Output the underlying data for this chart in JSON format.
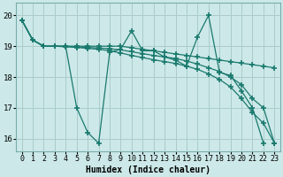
{
  "xlabel": "Humidex (Indice chaleur)",
  "bg_color": "#cce8e8",
  "grid_color": "#aacccc",
  "line_color": "#1a7a6e",
  "xlim": [
    -0.5,
    23.5
  ],
  "ylim": [
    15.6,
    20.4
  ],
  "xticks": [
    0,
    1,
    2,
    3,
    4,
    5,
    6,
    7,
    8,
    9,
    10,
    11,
    12,
    13,
    14,
    15,
    16,
    17,
    18,
    19,
    20,
    21,
    22,
    23
  ],
  "yticks": [
    16,
    17,
    18,
    19,
    20
  ],
  "s1_x": [
    0,
    1,
    2,
    3,
    4,
    5,
    6,
    7,
    8,
    9,
    10,
    11,
    12,
    13,
    14,
    15,
    16,
    17,
    18,
    19,
    20,
    21,
    22
  ],
  "s1_y": [
    19.85,
    19.2,
    19.0,
    19.0,
    19.0,
    17.0,
    16.2,
    15.85,
    18.8,
    18.9,
    19.5,
    18.85,
    18.85,
    18.65,
    18.55,
    18.35,
    19.3,
    20.0,
    18.15,
    18.05,
    17.55,
    17.0,
    15.85
  ],
  "s2_x": [
    0,
    1,
    2,
    3,
    4,
    5,
    6,
    7,
    8,
    9,
    10,
    11,
    12,
    13,
    14,
    15,
    16,
    17,
    18,
    19,
    20,
    21,
    22,
    23
  ],
  "s2_y": [
    19.85,
    19.2,
    19.0,
    19.0,
    19.0,
    19.0,
    19.0,
    19.0,
    19.0,
    19.0,
    18.95,
    18.9,
    18.85,
    18.8,
    18.75,
    18.7,
    18.65,
    18.6,
    18.55,
    18.5,
    18.45,
    18.4,
    18.35,
    18.3
  ],
  "s3_x": [
    0,
    1,
    2,
    3,
    4,
    5,
    6,
    7,
    8,
    9,
    10,
    11,
    12,
    13,
    14,
    15,
    16,
    17,
    18,
    19,
    20,
    21,
    22,
    23
  ],
  "s3_y": [
    19.85,
    19.2,
    19.0,
    19.0,
    19.0,
    18.98,
    18.96,
    18.94,
    18.92,
    18.88,
    18.82,
    18.76,
    18.7,
    18.65,
    18.6,
    18.52,
    18.42,
    18.3,
    18.18,
    18.0,
    17.75,
    17.3,
    17.0,
    15.85
  ],
  "s4_x": [
    0,
    1,
    2,
    3,
    4,
    5,
    6,
    7,
    8,
    9,
    10,
    11,
    12,
    13,
    14,
    15,
    16,
    17,
    18,
    19,
    20,
    21,
    22,
    23
  ],
  "s4_y": [
    19.85,
    19.2,
    19.0,
    19.0,
    18.98,
    18.96,
    18.93,
    18.9,
    18.85,
    18.78,
    18.7,
    18.63,
    18.56,
    18.5,
    18.44,
    18.35,
    18.25,
    18.1,
    17.92,
    17.68,
    17.3,
    16.85,
    16.5,
    15.85
  ]
}
